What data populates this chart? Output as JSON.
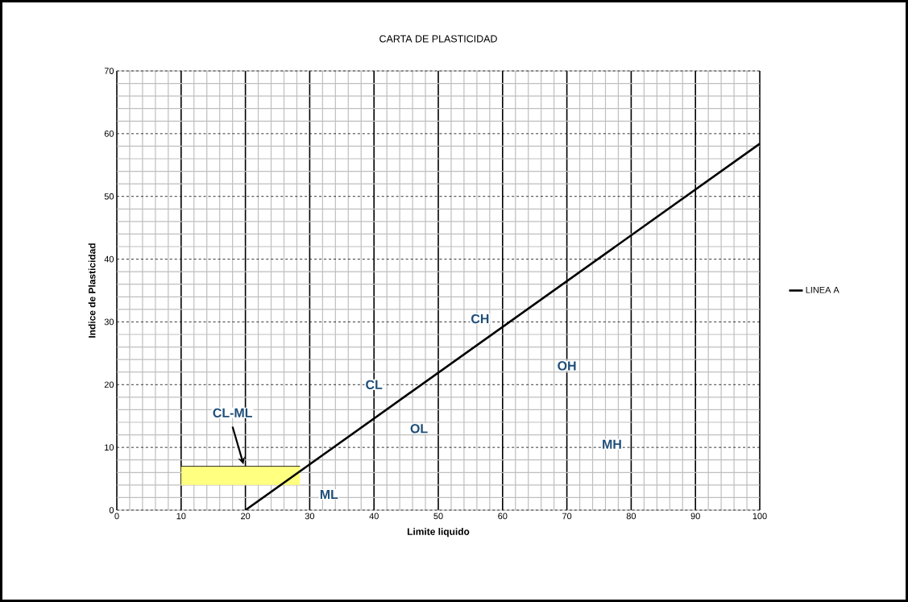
{
  "chart_data": {
    "type": "line",
    "title": "CARTA DE PLASTICIDAD",
    "xlabel": "Limite liquido",
    "ylabel": "Indice de Plasticidad",
    "xlim": [
      0,
      100
    ],
    "ylim": [
      0,
      70
    ],
    "xticks": [
      0,
      10,
      20,
      30,
      40,
      50,
      60,
      70,
      80,
      90,
      100
    ],
    "yticks": [
      0,
      10,
      20,
      30,
      40,
      50,
      60,
      70
    ],
    "grid": true,
    "legend": "right",
    "marker": "none",
    "line_style": "solid",
    "series": [
      {
        "type": "line",
        "color": "#000000",
        "x": [
          10,
          28.5
        ],
        "values": [
          7,
          7
        ],
        "lower": [
          4,
          4
        ],
        "upper": [
          7,
          7
        ]
      },
      {
        "name": "LINEA A",
        "color": "#000000",
        "x": [
          20,
          100
        ],
        "values": [
          0,
          58.4
        ]
      }
    ],
    "annotations": [
      "CL-ML",
      "CH",
      "CL",
      "OL",
      "OH",
      "MH",
      "ML"
    ]
  }
}
